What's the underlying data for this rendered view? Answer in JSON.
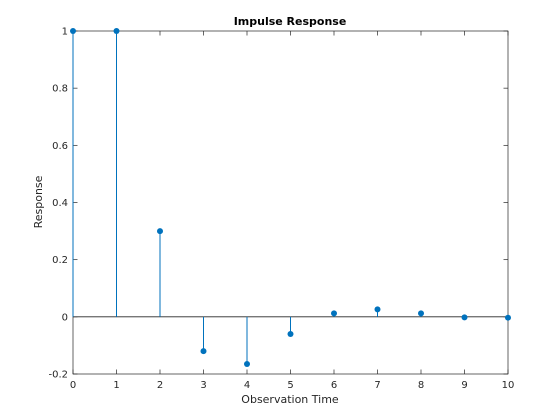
{
  "colors": {
    "series": "#0072BD",
    "axis": "#262626",
    "background": "#ffffff"
  },
  "chart_data": {
    "type": "stem",
    "title": "Impulse Response",
    "xlabel": "Observation Time",
    "ylabel": "Response",
    "xlim": [
      0,
      10
    ],
    "ylim": [
      -0.2,
      1
    ],
    "grid": false,
    "baseline": 0,
    "xticks": [
      0,
      1,
      2,
      3,
      4,
      5,
      6,
      7,
      8,
      9,
      10
    ],
    "xtick_labels": [
      "0",
      "1",
      "2",
      "3",
      "4",
      "5",
      "6",
      "7",
      "8",
      "9",
      "10"
    ],
    "yticks": [
      -0.2,
      0,
      0.2,
      0.4,
      0.6,
      0.8,
      1
    ],
    "ytick_labels": [
      "-0.2",
      "0",
      "0.2",
      "0.4",
      "0.6",
      "0.8",
      "1"
    ],
    "x": [
      0,
      1,
      2,
      3,
      4,
      5,
      6,
      7,
      8,
      9,
      10
    ],
    "values": [
      1,
      1,
      0.3,
      -0.12,
      -0.165,
      -0.06,
      0.012,
      0.026,
      0.012,
      -0.002,
      -0.003
    ]
  }
}
